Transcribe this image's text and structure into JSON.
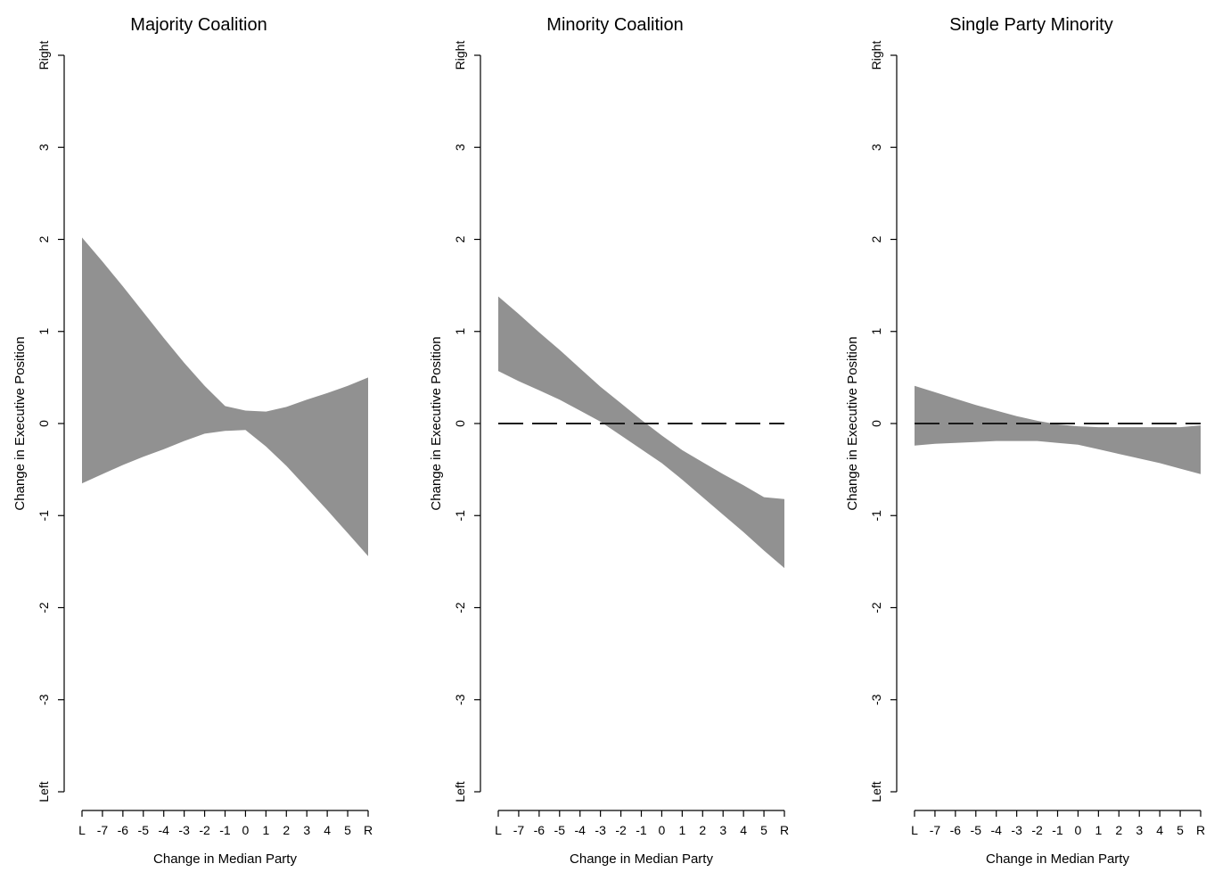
{
  "colors": {
    "band": "#919191",
    "reference": "#1a1a1a",
    "axis": "#000000"
  },
  "chart_data": [
    {
      "type": "area",
      "title": "Majority Coalition",
      "xlabel": "Change in Median Party",
      "ylabel": "Change in Executive Position",
      "x_categories": [
        "L",
        "-7",
        "-6",
        "-5",
        "-4",
        "-3",
        "-2",
        "-1",
        "0",
        "1",
        "2",
        "3",
        "4",
        "5",
        "R"
      ],
      "y_ticks": [
        "Left",
        "-3",
        "-2",
        "-1",
        "0",
        "1",
        "2",
        "3",
        "Right"
      ],
      "ylim": [
        -4,
        4
      ],
      "reference_line": false,
      "series": [
        {
          "kind": "confidence-band",
          "x": [
            -8,
            -7,
            -6,
            -5,
            -4,
            -3,
            -2,
            -1,
            0,
            1,
            2,
            3,
            4,
            5,
            6
          ],
          "upper": [
            2.02,
            1.76,
            1.49,
            1.21,
            0.93,
            0.66,
            0.41,
            0.19,
            0.14,
            0.13,
            0.18,
            0.26,
            0.33,
            0.41,
            0.5
          ],
          "lower": [
            -0.65,
            -0.55,
            -0.45,
            -0.36,
            -0.28,
            -0.19,
            -0.11,
            -0.08,
            -0.07,
            -0.25,
            -0.46,
            -0.7,
            -0.94,
            -1.19,
            -1.44
          ]
        }
      ]
    },
    {
      "type": "area",
      "title": "Minority Coalition",
      "xlabel": "Change in Median Party",
      "ylabel": "Change in Executive Position",
      "x_categories": [
        "L",
        "-7",
        "-6",
        "-5",
        "-4",
        "-3",
        "-2",
        "-1",
        "0",
        "1",
        "2",
        "3",
        "4",
        "5",
        "R"
      ],
      "y_ticks": [
        "Left",
        "-3",
        "-2",
        "-1",
        "0",
        "1",
        "2",
        "3",
        "Right"
      ],
      "ylim": [
        -4,
        4
      ],
      "reference_line": true,
      "series": [
        {
          "kind": "confidence-band",
          "x": [
            -8,
            -7,
            -6,
            -5,
            -4,
            -3,
            -2,
            -1,
            0,
            1,
            2,
            3,
            4,
            5,
            6
          ],
          "upper": [
            1.38,
            1.19,
            0.99,
            0.8,
            0.6,
            0.4,
            0.22,
            0.04,
            -0.13,
            -0.29,
            -0.42,
            -0.55,
            -0.67,
            -0.8,
            -0.82
          ],
          "lower": [
            0.57,
            0.46,
            0.36,
            0.26,
            0.14,
            0.02,
            -0.13,
            -0.28,
            -0.43,
            -0.61,
            -0.8,
            -0.99,
            -1.18,
            -1.38,
            -1.57
          ]
        }
      ]
    },
    {
      "type": "area",
      "title": "Single Party Minority",
      "xlabel": "Change in Median Party",
      "ylabel": "Change in Executive Position",
      "x_categories": [
        "L",
        "-7",
        "-6",
        "-5",
        "-4",
        "-3",
        "-2",
        "-1",
        "0",
        "1",
        "2",
        "3",
        "4",
        "5",
        "R"
      ],
      "y_ticks": [
        "Left",
        "-3",
        "-2",
        "-1",
        "0",
        "1",
        "2",
        "3",
        "Right"
      ],
      "ylim": [
        -4,
        4
      ],
      "reference_line": true,
      "series": [
        {
          "kind": "confidence-band",
          "x": [
            -8,
            -7,
            -6,
            -5,
            -4,
            -3,
            -2,
            -1,
            0,
            1,
            2,
            3,
            4,
            5,
            6
          ],
          "upper": [
            0.41,
            0.34,
            0.27,
            0.2,
            0.14,
            0.08,
            0.03,
            -0.01,
            -0.03,
            -0.04,
            -0.04,
            -0.04,
            -0.04,
            -0.04,
            -0.02
          ],
          "lower": [
            -0.24,
            -0.22,
            -0.21,
            -0.2,
            -0.19,
            -0.19,
            -0.19,
            -0.21,
            -0.23,
            -0.28,
            -0.33,
            -0.38,
            -0.43,
            -0.49,
            -0.55
          ]
        }
      ]
    }
  ]
}
